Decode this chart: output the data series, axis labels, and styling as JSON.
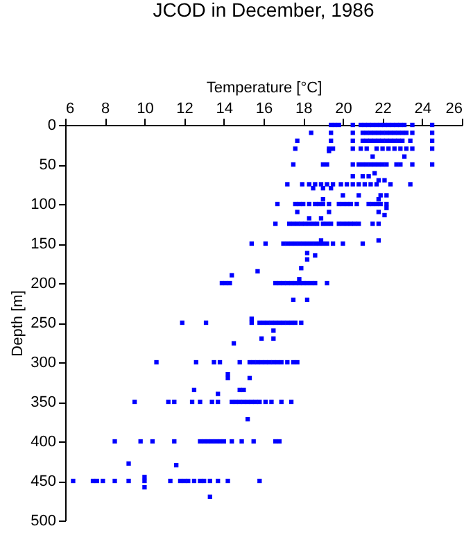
{
  "chart_data": {
    "type": "scatter",
    "title": "JCOD in December, 1986",
    "xlabel": "Temperature [°C]",
    "ylabel": "Depth [m]",
    "xlim": [
      6,
      26
    ],
    "xticks": [
      6,
      8,
      10,
      12,
      14,
      16,
      18,
      20,
      22,
      24,
      26
    ],
    "ylim": [
      500,
      0
    ],
    "yticks": [
      0,
      50,
      100,
      150,
      200,
      250,
      300,
      350,
      400,
      450,
      500
    ],
    "grid": false,
    "marker": "square",
    "series": [
      {
        "color": "#0000ff",
        "x": [
          19.4,
          19.6,
          19.8,
          20.5,
          20.9,
          21.1,
          21.3,
          21.5,
          21.7,
          21.9,
          22.1,
          22.3,
          22.5,
          22.7,
          22.9,
          23.1,
          23.5,
          24.5,
          18.4,
          19.4,
          20.5,
          21.0,
          21.2,
          21.4,
          21.6,
          21.8,
          22.0,
          22.2,
          22.4,
          22.6,
          22.8,
          23.0,
          23.2,
          23.5,
          24.5,
          17.7,
          19.4,
          20.5,
          21.0,
          21.2,
          21.4,
          21.6,
          21.8,
          22.0,
          22.2,
          22.4,
          22.6,
          22.8,
          23.0,
          23.4,
          24.5,
          17.6,
          19.3,
          19.5,
          20.5,
          20.9,
          21.2,
          21.7,
          22.0,
          22.3,
          22.6,
          22.9,
          23.2,
          23.5,
          24.5,
          19.3,
          21.5,
          23.1,
          17.5,
          19.0,
          19.2,
          20.5,
          20.8,
          21.0,
          21.2,
          21.4,
          21.6,
          21.8,
          22.0,
          22.2,
          22.7,
          22.9,
          23.5,
          24.5,
          21.6,
          20.5,
          21.0,
          21.3,
          21.8,
          22.1,
          17.2,
          17.95,
          18.3,
          18.6,
          18.9,
          19.2,
          19.5,
          19.9,
          20.2,
          20.5,
          20.8,
          21.1,
          21.4,
          21.7,
          22.4,
          23.4,
          18.5,
          19.0,
          19.4,
          20.0,
          20.8,
          21.9,
          22.2,
          19.0,
          21.8,
          16.7,
          17.6,
          17.8,
          18.0,
          18.3,
          18.6,
          18.8,
          19.0,
          19.3,
          19.8,
          20.0,
          20.2,
          20.4,
          20.7,
          21.3,
          21.5,
          21.7,
          21.9,
          22.2,
          22.2,
          17.7,
          19.3,
          21.8,
          22.1,
          18.3,
          18.9,
          16.6,
          17.3,
          17.5,
          17.7,
          17.9,
          18.1,
          18.3,
          18.5,
          18.7,
          19.0,
          19.2,
          19.4,
          19.8,
          20.0,
          20.2,
          20.4,
          20.6,
          20.8,
          21.5,
          21.8,
          18.9,
          21.8,
          15.4,
          16.1,
          17.0,
          17.2,
          17.4,
          17.6,
          17.8,
          18.0,
          18.2,
          18.4,
          18.6,
          18.8,
          19.0,
          19.2,
          19.5,
          20.0,
          21.0,
          18.2,
          18.6,
          18.2,
          17.9,
          15.7,
          14.4,
          17.8,
          13.9,
          14.1,
          14.3,
          16.6,
          16.8,
          17.0,
          17.2,
          17.4,
          17.6,
          17.8,
          18.0,
          18.2,
          18.4,
          18.6,
          19.2,
          17.5,
          18.2,
          15.4,
          11.9,
          13.1,
          15.4,
          15.8,
          16.0,
          16.2,
          16.4,
          16.6,
          16.8,
          17.0,
          17.2,
          17.4,
          17.6,
          17.9,
          16.5,
          15.9,
          16.5,
          14.5,
          10.6,
          12.6,
          13.5,
          13.8,
          14.8,
          15.3,
          15.5,
          15.7,
          15.9,
          16.1,
          16.3,
          16.5,
          16.7,
          16.9,
          17.2,
          17.5,
          17.7,
          14.2,
          14.2,
          15.3,
          12.5,
          14.8,
          15.0,
          13.7,
          9.5,
          11.2,
          11.5,
          12.4,
          12.8,
          13.4,
          13.7,
          14.4,
          14.6,
          14.8,
          15.0,
          15.2,
          15.4,
          15.6,
          15.8,
          16.1,
          16.4,
          16.9,
          17.4,
          15.2,
          8.5,
          9.8,
          10.4,
          11.5,
          12.8,
          13.0,
          13.2,
          13.4,
          13.6,
          13.8,
          14.0,
          14.4,
          14.9,
          15.5,
          16.6,
          16.8,
          9.2,
          11.6,
          10.0,
          6.4,
          7.4,
          7.6,
          7.9,
          8.5,
          9.2,
          10.0,
          11.3,
          11.8,
          12.0,
          12.2,
          12.5,
          12.8,
          13.0,
          13.3,
          13.7,
          14.2,
          15.8,
          10.0,
          13.3
        ],
        "values": [
          0,
          0,
          0,
          0,
          0,
          0,
          0,
          0,
          0,
          0,
          0,
          0,
          0,
          0,
          0,
          0,
          0,
          0,
          10,
          10,
          10,
          10,
          10,
          10,
          10,
          10,
          10,
          10,
          10,
          10,
          10,
          10,
          10,
          10,
          10,
          20,
          20,
          20,
          20,
          20,
          20,
          20,
          20,
          20,
          20,
          20,
          20,
          20,
          20,
          20,
          20,
          30,
          30,
          30,
          30,
          30,
          30,
          30,
          30,
          30,
          30,
          30,
          30,
          30,
          30,
          33,
          40,
          40,
          50,
          50,
          50,
          50,
          50,
          50,
          50,
          50,
          50,
          50,
          50,
          50,
          50,
          50,
          50,
          50,
          61,
          65,
          65,
          65,
          70,
          70,
          75,
          75,
          75,
          75,
          75,
          75,
          75,
          75,
          75,
          75,
          75,
          75,
          75,
          75,
          75,
          75,
          80,
          80,
          80,
          89,
          89,
          89,
          89,
          94,
          94,
          100,
          100,
          100,
          100,
          100,
          100,
          100,
          100,
          100,
          100,
          100,
          100,
          100,
          100,
          100,
          100,
          100,
          100,
          100,
          105,
          110,
          110,
          110,
          114,
          118,
          118,
          125,
          125,
          125,
          125,
          125,
          125,
          125,
          125,
          125,
          125,
          125,
          125,
          125,
          125,
          125,
          125,
          125,
          125,
          125,
          125,
          146,
          146,
          150,
          150,
          150,
          150,
          150,
          150,
          150,
          150,
          150,
          150,
          150,
          150,
          150,
          150,
          150,
          150,
          150,
          162,
          165,
          170,
          181,
          185,
          190,
          195,
          200,
          200,
          200,
          200,
          200,
          200,
          200,
          200,
          200,
          200,
          200,
          200,
          200,
          200,
          200,
          221,
          221,
          245,
          250,
          250,
          250,
          250,
          250,
          250,
          250,
          250,
          250,
          250,
          250,
          250,
          250,
          250,
          260,
          270,
          270,
          276,
          300,
          300,
          300,
          300,
          300,
          300,
          300,
          300,
          300,
          300,
          300,
          300,
          300,
          300,
          300,
          300,
          300,
          315,
          320,
          320,
          335,
          335,
          335,
          340,
          350,
          350,
          350,
          350,
          350,
          350,
          350,
          350,
          350,
          350,
          350,
          350,
          350,
          350,
          350,
          350,
          350,
          350,
          350,
          372,
          400,
          400,
          400,
          400,
          400,
          400,
          400,
          400,
          400,
          400,
          400,
          400,
          400,
          400,
          400,
          400,
          428,
          430,
          445,
          450,
          450,
          450,
          450,
          450,
          450,
          450,
          450,
          450,
          450,
          450,
          450,
          450,
          450,
          450,
          450,
          450,
          450,
          458,
          470
        ]
      }
    ]
  }
}
